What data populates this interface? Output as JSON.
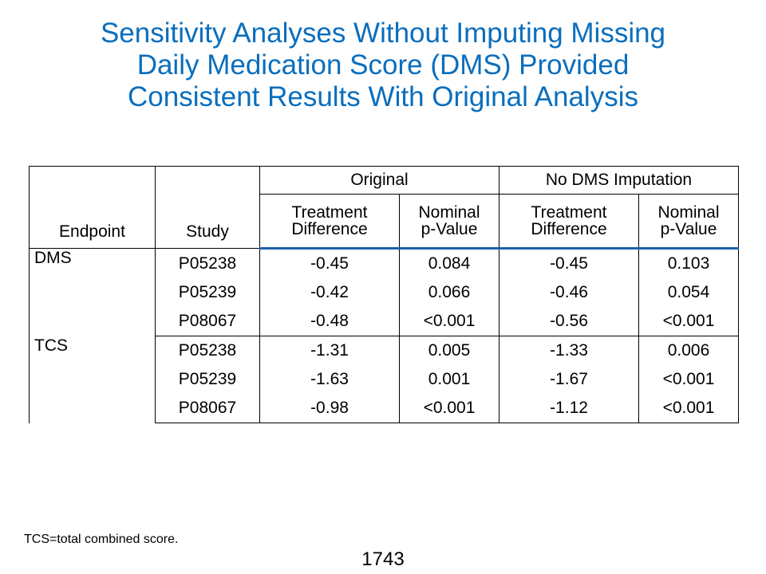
{
  "title": {
    "lines": [
      "Sensitivity Analyses Without Imputing Missing",
      "Daily Medication Score (DMS) Provided",
      "Consistent Results With Original Analysis"
    ]
  },
  "colors": {
    "title": "#0a6ebd",
    "header_rule": "#1f5fa8"
  },
  "table": {
    "headers": {
      "endpoint": "Endpoint",
      "study": "Study",
      "group_original": "Original",
      "group_no_dms": "No DMS Imputation",
      "treatment_difference": [
        "Treatment",
        "Difference"
      ],
      "nominal_p_value": [
        "Nominal",
        "p-Value"
      ]
    },
    "groups": [
      {
        "endpoint": "DMS",
        "rows": [
          {
            "study": "P05238",
            "orig_td": "-0.45",
            "orig_p": "0.084",
            "nodms_td": "-0.45",
            "nodms_p": "0.103"
          },
          {
            "study": "P05239",
            "orig_td": "-0.42",
            "orig_p": "0.066",
            "nodms_td": "-0.46",
            "nodms_p": "0.054"
          },
          {
            "study": "P08067",
            "orig_td": "-0.48",
            "orig_p": "<0.001",
            "nodms_td": "-0.56",
            "nodms_p": "<0.001"
          }
        ]
      },
      {
        "endpoint": "TCS",
        "rows": [
          {
            "study": "P05238",
            "orig_td": "-1.31",
            "orig_p": "0.005",
            "nodms_td": "-1.33",
            "nodms_p": "0.006"
          },
          {
            "study": "P05239",
            "orig_td": "-1.63",
            "orig_p": "0.001",
            "nodms_td": "-1.67",
            "nodms_p": "<0.001"
          },
          {
            "study": "P08067",
            "orig_td": "-0.98",
            "orig_p": "<0.001",
            "nodms_td": "-1.12",
            "nodms_p": "<0.001"
          }
        ]
      }
    ]
  },
  "footnote": "TCS=total combined score.",
  "page_number": "1743"
}
